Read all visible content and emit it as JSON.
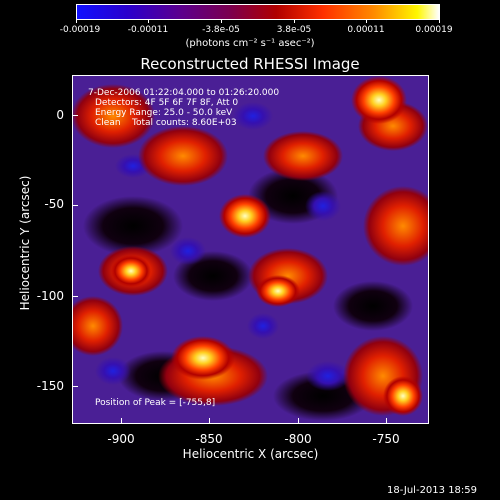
{
  "colorbar": {
    "ticks": [
      "-0.00019",
      "-0.00011",
      "-3.8e-05",
      "3.8e-05",
      "0.00011",
      "0.00019"
    ],
    "units": "(photons cm⁻² s⁻¹ asec⁻²)"
  },
  "title": "Reconstructed RHESSI Image",
  "info": {
    "line1": "7-Dec-2006 01:22:04.000 to 01:26:20.000",
    "line2": "Detectors: 4F 5F 6F 7F 8F, Att 0",
    "line3": "Energy Range: 25.0 - 50.0 keV",
    "line4": "Clean    Total counts: 8.60E+03"
  },
  "peak": "Position of Peak = [-755,8]",
  "axes": {
    "xlabel": "Heliocentric X (arcsec)",
    "ylabel": "Heliocentric Y (arcsec)",
    "xticks": [
      "-900",
      "-850",
      "-800",
      "-750"
    ],
    "yticks": [
      "0",
      "-50",
      "-100",
      "-150"
    ]
  },
  "timestamp": "18-Jul-2013 18:59"
}
